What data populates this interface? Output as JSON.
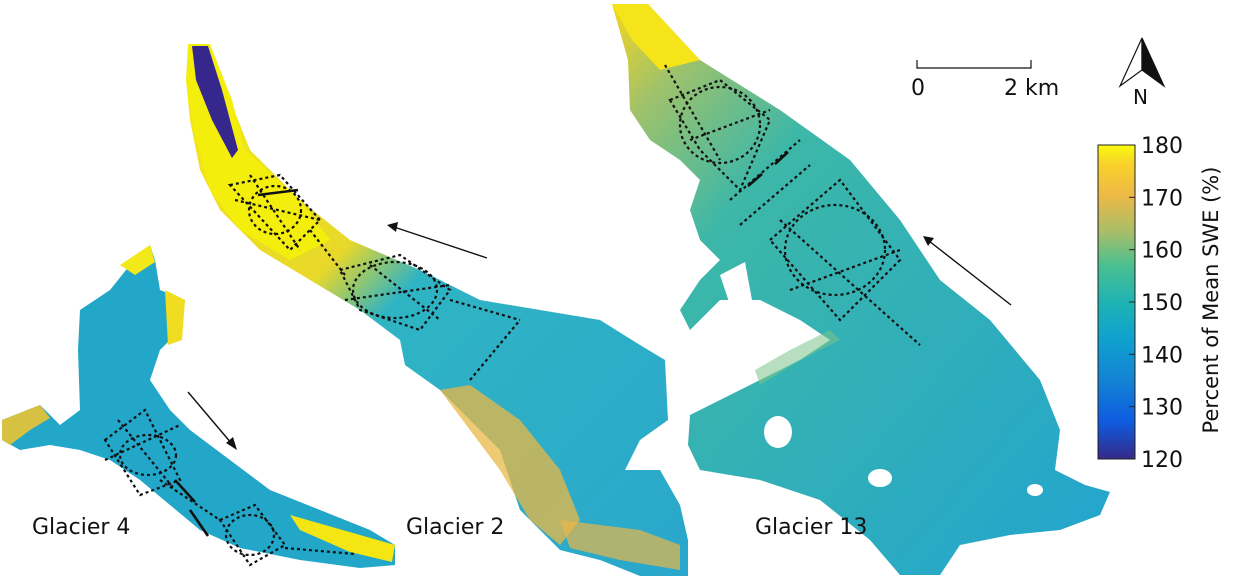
{
  "glaciers": [
    {
      "label": "Glacier 4"
    },
    {
      "label": "Glacier 2"
    },
    {
      "label": "Glacier 13"
    }
  ],
  "scale_bar": {
    "start_label": "0",
    "end_label": "2 km"
  },
  "north_arrow": {
    "label": "N",
    "icon": "north-arrow-icon"
  },
  "colorbar": {
    "title": "Percent of Mean SWE (%)",
    "ticks": [
      "180",
      "170",
      "160",
      "150",
      "140",
      "130",
      "120"
    ],
    "min": 120,
    "max": 180,
    "colormap": "parula",
    "colors": [
      "#f9fb0e",
      "#f0b63d",
      "#a7bf60",
      "#3cbda0",
      "#16a4d3",
      "#0f6fe0",
      "#352a87"
    ]
  }
}
